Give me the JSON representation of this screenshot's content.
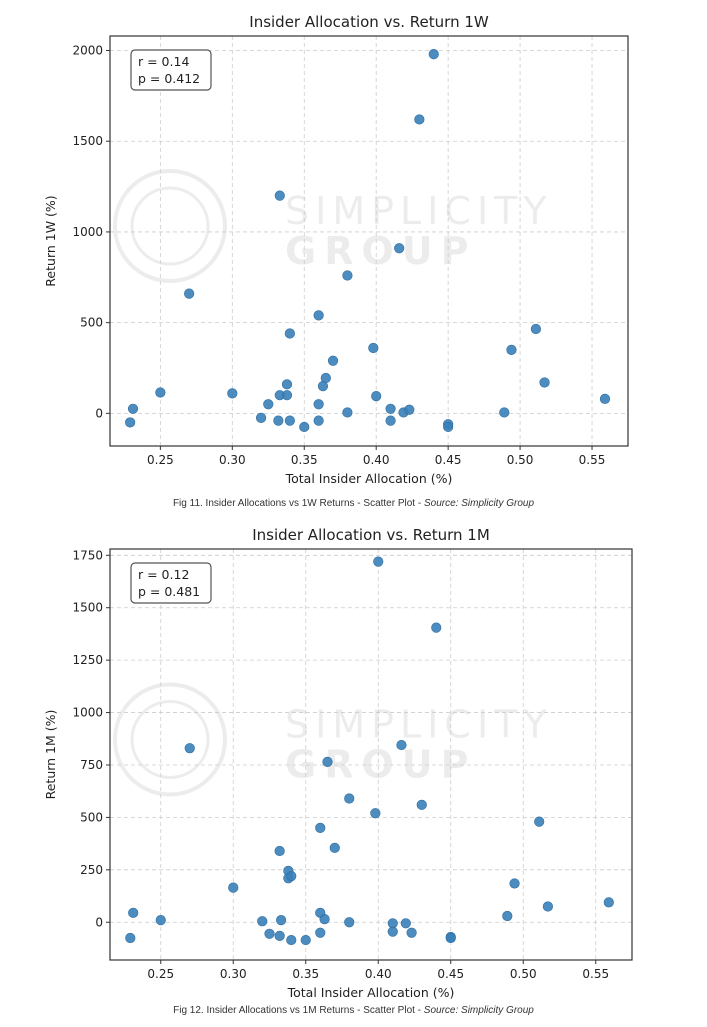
{
  "figures": [
    {
      "caption": "Fig 11. Insider Allocations vs 1W Returns - Scatter Plot - ",
      "caption_source": "Source: Simplicity Group"
    },
    {
      "caption": "Fig 12. Insider Allocations vs 1M Returns - Scatter Plot - ",
      "caption_source": "Source: Simplicity Group"
    }
  ],
  "watermark": {
    "line1": "SIMPLICITY",
    "line2": "GROUP"
  },
  "colors": {
    "point": "#3a7fb8",
    "grid": "#cccccc",
    "axis": "#333333"
  },
  "chart_data": [
    {
      "type": "scatter",
      "title": "Insider Allocation vs. Return 1W",
      "xlabel": "Total Insider Allocation (%)",
      "ylabel": "Return 1W (%)",
      "xlim": [
        0.215,
        0.575
      ],
      "ylim": [
        -180,
        2080
      ],
      "xticks": [
        0.25,
        0.3,
        0.35,
        0.4,
        0.45,
        0.5,
        0.55
      ],
      "xtick_labels": [
        "0.25",
        "0.30",
        "0.35",
        "0.40",
        "0.45",
        "0.50",
        "0.55"
      ],
      "yticks": [
        0,
        500,
        1000,
        1500,
        2000
      ],
      "ytick_labels": [
        "0",
        "500",
        "1000",
        "1500",
        "2000"
      ],
      "grid": true,
      "annotation": [
        "r = 0.14",
        "p = 0.412"
      ],
      "points": [
        {
          "x": 0.229,
          "y": -50
        },
        {
          "x": 0.231,
          "y": 25
        },
        {
          "x": 0.25,
          "y": 115
        },
        {
          "x": 0.27,
          "y": 660
        },
        {
          "x": 0.3,
          "y": 110
        },
        {
          "x": 0.32,
          "y": -25
        },
        {
          "x": 0.325,
          "y": 50
        },
        {
          "x": 0.332,
          "y": -40
        },
        {
          "x": 0.333,
          "y": 1200
        },
        {
          "x": 0.333,
          "y": 100
        },
        {
          "x": 0.338,
          "y": 100
        },
        {
          "x": 0.338,
          "y": 160
        },
        {
          "x": 0.34,
          "y": 440
        },
        {
          "x": 0.34,
          "y": -40
        },
        {
          "x": 0.35,
          "y": -75
        },
        {
          "x": 0.36,
          "y": 540
        },
        {
          "x": 0.36,
          "y": 50
        },
        {
          "x": 0.36,
          "y": -40
        },
        {
          "x": 0.363,
          "y": 150
        },
        {
          "x": 0.365,
          "y": 195
        },
        {
          "x": 0.37,
          "y": 290
        },
        {
          "x": 0.38,
          "y": 760
        },
        {
          "x": 0.38,
          "y": 5
        },
        {
          "x": 0.398,
          "y": 360
        },
        {
          "x": 0.4,
          "y": 95
        },
        {
          "x": 0.41,
          "y": 25
        },
        {
          "x": 0.41,
          "y": -40
        },
        {
          "x": 0.416,
          "y": 910
        },
        {
          "x": 0.419,
          "y": 5
        },
        {
          "x": 0.423,
          "y": 20
        },
        {
          "x": 0.43,
          "y": 1620
        },
        {
          "x": 0.44,
          "y": 1980
        },
        {
          "x": 0.45,
          "y": -60
        },
        {
          "x": 0.45,
          "y": -75
        },
        {
          "x": 0.489,
          "y": 5
        },
        {
          "x": 0.494,
          "y": 350
        },
        {
          "x": 0.511,
          "y": 465
        },
        {
          "x": 0.517,
          "y": 170
        },
        {
          "x": 0.559,
          "y": 80
        }
      ]
    },
    {
      "type": "scatter",
      "title": "Insider Allocation vs. Return 1M",
      "xlabel": "Total Insider Allocation (%)",
      "ylabel": "Return 1M (%)",
      "xlim": [
        0.215,
        0.575
      ],
      "ylim": [
        -180,
        1780
      ],
      "xticks": [
        0.25,
        0.3,
        0.35,
        0.4,
        0.45,
        0.5,
        0.55
      ],
      "xtick_labels": [
        "0.25",
        "0.30",
        "0.35",
        "0.40",
        "0.45",
        "0.50",
        "0.55"
      ],
      "yticks": [
        0,
        250,
        500,
        750,
        1000,
        1250,
        1500,
        1750
      ],
      "ytick_labels": [
        "0",
        "250",
        "500",
        "750",
        "1000",
        "1250",
        "1500",
        "1750"
      ],
      "grid": true,
      "annotation": [
        "r = 0.12",
        "p = 0.481"
      ],
      "points": [
        {
          "x": 0.229,
          "y": -75
        },
        {
          "x": 0.231,
          "y": 45
        },
        {
          "x": 0.25,
          "y": 10
        },
        {
          "x": 0.27,
          "y": 830
        },
        {
          "x": 0.3,
          "y": 165
        },
        {
          "x": 0.32,
          "y": 5
        },
        {
          "x": 0.325,
          "y": -55
        },
        {
          "x": 0.332,
          "y": 340
        },
        {
          "x": 0.332,
          "y": -65
        },
        {
          "x": 0.333,
          "y": 10
        },
        {
          "x": 0.338,
          "y": 245
        },
        {
          "x": 0.338,
          "y": 210
        },
        {
          "x": 0.34,
          "y": 220
        },
        {
          "x": 0.34,
          "y": -85
        },
        {
          "x": 0.35,
          "y": -85
        },
        {
          "x": 0.36,
          "y": 450
        },
        {
          "x": 0.36,
          "y": 45
        },
        {
          "x": 0.36,
          "y": -50
        },
        {
          "x": 0.363,
          "y": 15
        },
        {
          "x": 0.365,
          "y": 765
        },
        {
          "x": 0.37,
          "y": 355
        },
        {
          "x": 0.38,
          "y": 590
        },
        {
          "x": 0.38,
          "y": 0
        },
        {
          "x": 0.398,
          "y": 520
        },
        {
          "x": 0.4,
          "y": 1720
        },
        {
          "x": 0.41,
          "y": -5
        },
        {
          "x": 0.41,
          "y": -45
        },
        {
          "x": 0.416,
          "y": 845
        },
        {
          "x": 0.419,
          "y": -5
        },
        {
          "x": 0.423,
          "y": -50
        },
        {
          "x": 0.43,
          "y": 560
        },
        {
          "x": 0.44,
          "y": 1405
        },
        {
          "x": 0.45,
          "y": -70
        },
        {
          "x": 0.45,
          "y": -75
        },
        {
          "x": 0.489,
          "y": 30
        },
        {
          "x": 0.494,
          "y": 185
        },
        {
          "x": 0.511,
          "y": 480
        },
        {
          "x": 0.517,
          "y": 75
        },
        {
          "x": 0.559,
          "y": 95
        }
      ]
    }
  ]
}
